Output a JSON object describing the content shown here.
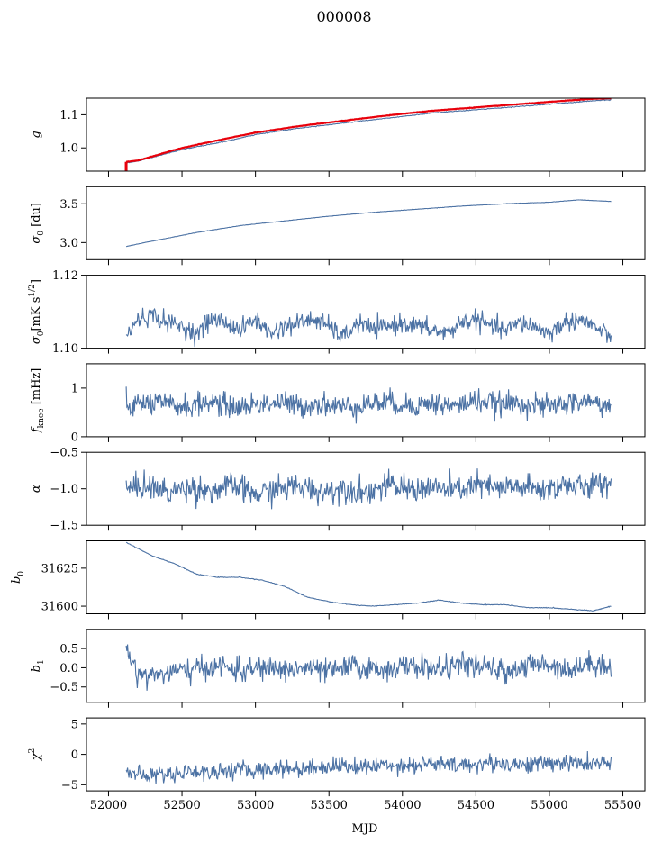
{
  "title": "000008",
  "x_axis_label": "MJD",
  "colors": {
    "series": "#4c72a4",
    "overlay": "#e8000b",
    "axes": "#000000"
  },
  "chart_data": [
    {
      "type": "line",
      "ylabel": "g",
      "xlim": [
        51850,
        55650
      ],
      "ylim": [
        0.93,
        1.15
      ],
      "yticks": [
        1.0,
        1.1
      ],
      "ytick_labels": [
        "1.0",
        "1.1"
      ],
      "grid": false,
      "series": [
        {
          "x": [
            52120,
            52200,
            52500,
            52800,
            53000,
            53300,
            53600,
            53900,
            54200,
            54500,
            54800,
            55100,
            55300,
            55420
          ],
          "values": [
            0.955,
            0.96,
            0.995,
            1.02,
            1.04,
            1.06,
            1.075,
            1.09,
            1.105,
            1.115,
            1.125,
            1.135,
            1.142,
            1.145
          ]
        },
        {
          "x": [
            52120,
            52200,
            52500,
            52800,
            53000,
            53300,
            53600,
            53900,
            54200,
            54500,
            54800,
            55100,
            55300,
            55420
          ],
          "values": [
            0.958,
            0.962,
            1.0,
            1.028,
            1.046,
            1.066,
            1.082,
            1.098,
            1.112,
            1.122,
            1.132,
            1.142,
            1.148,
            1.15
          ],
          "color": "overlay"
        }
      ]
    },
    {
      "type": "line",
      "ylabel": "σ0 [du]",
      "xlim": [
        51850,
        55650
      ],
      "ylim": [
        2.78,
        3.72
      ],
      "yticks": [
        3.0,
        3.5
      ],
      "ytick_labels": [
        "3.0",
        "3.5"
      ],
      "grid": false,
      "series": [
        {
          "x": [
            52120,
            52300,
            52600,
            52900,
            53200,
            53500,
            53800,
            54100,
            54400,
            54700,
            55000,
            55200,
            55420
          ],
          "values": [
            2.95,
            3.02,
            3.13,
            3.22,
            3.28,
            3.34,
            3.39,
            3.43,
            3.47,
            3.5,
            3.52,
            3.55,
            3.53
          ]
        }
      ]
    },
    {
      "type": "line",
      "ylabel": "σ0[mK s^1/2]",
      "xlim": [
        51850,
        55650
      ],
      "ylim": [
        1.1,
        1.12
      ],
      "yticks": [
        1.1,
        1.12
      ],
      "ytick_labels": [
        "1.10",
        "1.12"
      ],
      "grid": false,
      "series": [
        {
          "x": [
            52120,
            52200,
            52300,
            52400,
            52500,
            52600,
            52700,
            52800,
            52900,
            53000,
            53100,
            53200,
            53300,
            53400,
            53500,
            53600,
            53700,
            53800,
            53900,
            54000,
            54100,
            54200,
            54300,
            54400,
            54500,
            54600,
            54700,
            54800,
            54900,
            55000,
            55100,
            55200,
            55300,
            55420
          ],
          "values": [
            1.103,
            1.108,
            1.109,
            1.107,
            1.106,
            1.104,
            1.108,
            1.107,
            1.105,
            1.108,
            1.104,
            1.106,
            1.107,
            1.108,
            1.106,
            1.103,
            1.107,
            1.105,
            1.106,
            1.107,
            1.106,
            1.105,
            1.104,
            1.107,
            1.108,
            1.106,
            1.105,
            1.107,
            1.106,
            1.104,
            1.107,
            1.108,
            1.106,
            1.103
          ]
        }
      ]
    },
    {
      "type": "line",
      "ylabel": "f_knee [mHz]",
      "xlim": [
        51850,
        55650
      ],
      "ylim": [
        0,
        1.5
      ],
      "yticks": [
        0,
        1
      ],
      "ytick_labels": [
        "0",
        "1"
      ],
      "grid": false,
      "series": [
        {
          "x": [
            52120,
            52250,
            52400,
            52550,
            52700,
            52850,
            53000,
            53150,
            53300,
            53450,
            53600,
            53750,
            53900,
            54050,
            54200,
            54350,
            54500,
            54650,
            54800,
            54950,
            55100,
            55250,
            55420
          ],
          "values": [
            0.6,
            0.7,
            0.65,
            0.62,
            0.72,
            0.6,
            0.66,
            0.7,
            0.63,
            0.68,
            0.6,
            0.67,
            0.71,
            0.64,
            0.69,
            0.62,
            0.75,
            0.66,
            0.7,
            0.61,
            0.68,
            0.72,
            0.65
          ]
        }
      ]
    },
    {
      "type": "line",
      "ylabel": "α",
      "xlim": [
        51850,
        55650
      ],
      "ylim": [
        -1.5,
        -0.5
      ],
      "yticks": [
        -1.5,
        -1.0,
        -0.5
      ],
      "ytick_labels": [
        "−1.5",
        "−1.0",
        "−0.5"
      ],
      "grid": false,
      "series": [
        {
          "x": [
            52120,
            52250,
            52400,
            52550,
            52700,
            52850,
            53000,
            53150,
            53300,
            53450,
            53600,
            53750,
            53900,
            54050,
            54200,
            54350,
            54500,
            54650,
            54800,
            54950,
            55100,
            55250,
            55420
          ],
          "values": [
            -1.02,
            -0.95,
            -1.05,
            -0.98,
            -1.03,
            -0.96,
            -1.08,
            -1.0,
            -0.97,
            -1.04,
            -0.99,
            -1.05,
            -0.96,
            -1.01,
            -0.98,
            -1.03,
            -0.95,
            -1.0,
            -0.97,
            -1.02,
            -0.94,
            -0.99,
            -0.9
          ]
        }
      ]
    },
    {
      "type": "line",
      "ylabel": "b0",
      "xlim": [
        51850,
        55650
      ],
      "ylim": [
        31595,
        31643
      ],
      "yticks": [
        31600,
        31625
      ],
      "ytick_labels": [
        "31600",
        "31625"
      ],
      "grid": false,
      "series": [
        {
          "x": [
            52120,
            52200,
            52300,
            52450,
            52600,
            52750,
            52900,
            53050,
            53200,
            53350,
            53500,
            53650,
            53800,
            53950,
            54100,
            54250,
            54400,
            54550,
            54700,
            54850,
            55000,
            55150,
            55300,
            55420
          ],
          "values": [
            31642,
            31638,
            31633,
            31628,
            31621,
            31619,
            31619,
            31617,
            31613,
            31606,
            31603,
            31601,
            31600,
            31601,
            31602,
            31604,
            31602,
            31601,
            31601,
            31599,
            31599,
            31598,
            31597,
            31600
          ]
        }
      ]
    },
    {
      "type": "line",
      "ylabel": "b1",
      "xlim": [
        51850,
        55650
      ],
      "ylim": [
        -0.9,
        1.0
      ],
      "yticks": [
        -0.5,
        0.0,
        0.5
      ],
      "ytick_labels": [
        "−0.5",
        "0.0",
        "0.5"
      ],
      "grid": false,
      "series": [
        {
          "x": [
            52120,
            52200,
            52300,
            52450,
            52600,
            52750,
            52900,
            53050,
            53200,
            53350,
            53500,
            53650,
            53800,
            53950,
            54100,
            54250,
            54400,
            54550,
            54700,
            54850,
            55000,
            55150,
            55300,
            55420
          ],
          "values": [
            0.5,
            -0.15,
            -0.2,
            -0.1,
            -0.05,
            0.05,
            -0.1,
            0.0,
            -0.05,
            0.0,
            -0.1,
            0.05,
            -0.05,
            0.0,
            0.05,
            -0.05,
            0.1,
            0.0,
            -0.1,
            0.05,
            0.1,
            -0.05,
            0.15,
            0.0
          ]
        }
      ]
    },
    {
      "type": "line",
      "ylabel": "χ2",
      "xlim": [
        51850,
        55650
      ],
      "ylim": [
        -6,
        6
      ],
      "yticks": [
        -5,
        0,
        5
      ],
      "ytick_labels": [
        "−5",
        "0",
        "5"
      ],
      "xticks": [
        52000,
        52500,
        53000,
        53500,
        54000,
        54500,
        55000,
        55500
      ],
      "xtick_labels": [
        "52000",
        "52500",
        "53000",
        "53500",
        "54000",
        "54500",
        "55000",
        "55500"
      ],
      "grid": false,
      "series": [
        {
          "x": [
            52120,
            52250,
            52400,
            52550,
            52700,
            52850,
            53000,
            53150,
            53300,
            53450,
            53600,
            53750,
            53900,
            54050,
            54200,
            54350,
            54500,
            54650,
            54800,
            54950,
            55100,
            55250,
            55420
          ],
          "values": [
            -3.0,
            -3.5,
            -3.2,
            -2.8,
            -3.0,
            -2.5,
            -2.7,
            -2.2,
            -2.4,
            -2.0,
            -1.8,
            -2.2,
            -1.6,
            -1.8,
            -1.5,
            -1.9,
            -1.6,
            -1.4,
            -1.7,
            -1.5,
            -1.3,
            -1.6,
            -1.5
          ]
        }
      ]
    }
  ]
}
